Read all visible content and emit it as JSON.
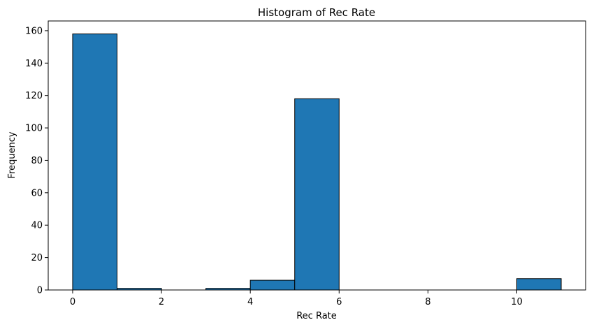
{
  "chart_data": {
    "type": "bar",
    "title": "Histogram of Rec Rate",
    "xlabel": "Rec Rate",
    "ylabel": "Frequency",
    "bins": [
      {
        "x0": 0,
        "x1": 1,
        "count": 158
      },
      {
        "x0": 1,
        "x1": 2,
        "count": 1
      },
      {
        "x0": 2,
        "x1": 3,
        "count": 0
      },
      {
        "x0": 3,
        "x1": 4,
        "count": 1
      },
      {
        "x0": 4,
        "x1": 5,
        "count": 6
      },
      {
        "x0": 5,
        "x1": 6,
        "count": 118
      },
      {
        "x0": 6,
        "x1": 7,
        "count": 0
      },
      {
        "x0": 7,
        "x1": 8,
        "count": 0
      },
      {
        "x0": 8,
        "x1": 9,
        "count": 0
      },
      {
        "x0": 9,
        "x1": 10,
        "count": 0
      },
      {
        "x0": 10,
        "x1": 11,
        "count": 7
      }
    ],
    "xlim": [
      -0.55,
      11.55
    ],
    "ylim": [
      0,
      166
    ],
    "xticks": [
      0,
      2,
      4,
      6,
      8,
      10
    ],
    "yticks": [
      0,
      20,
      40,
      60,
      80,
      100,
      120,
      140,
      160
    ],
    "grid": false,
    "colors": {
      "bar": "#1f77b4",
      "edge": "#000000"
    }
  }
}
